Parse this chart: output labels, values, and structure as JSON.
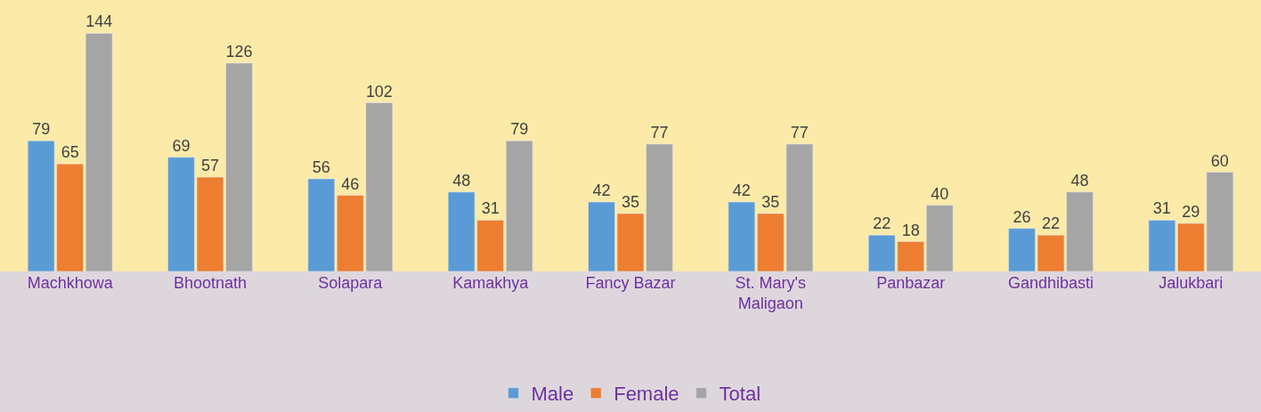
{
  "chart_data": {
    "type": "bar",
    "categories": [
      "Machkhowa",
      "Bhootnath",
      "Solapara",
      "Kamakhya",
      "Fancy Bazar",
      "St. Mary's\nMaligaon",
      "Panbazar",
      "Gandhibasti",
      "Jalukbari"
    ],
    "series": [
      {
        "name": "Male",
        "color": "#5b9bd5",
        "values": [
          79,
          69,
          56,
          48,
          42,
          42,
          22,
          26,
          31
        ]
      },
      {
        "name": "Female",
        "color": "#ed7d31",
        "values": [
          65,
          57,
          46,
          31,
          35,
          35,
          18,
          22,
          29
        ]
      },
      {
        "name": "Total",
        "color": "#a5a5a5",
        "values": [
          144,
          126,
          102,
          79,
          77,
          77,
          40,
          48,
          60
        ]
      }
    ],
    "data_labels": true,
    "grid": false,
    "legend": "bottom"
  }
}
